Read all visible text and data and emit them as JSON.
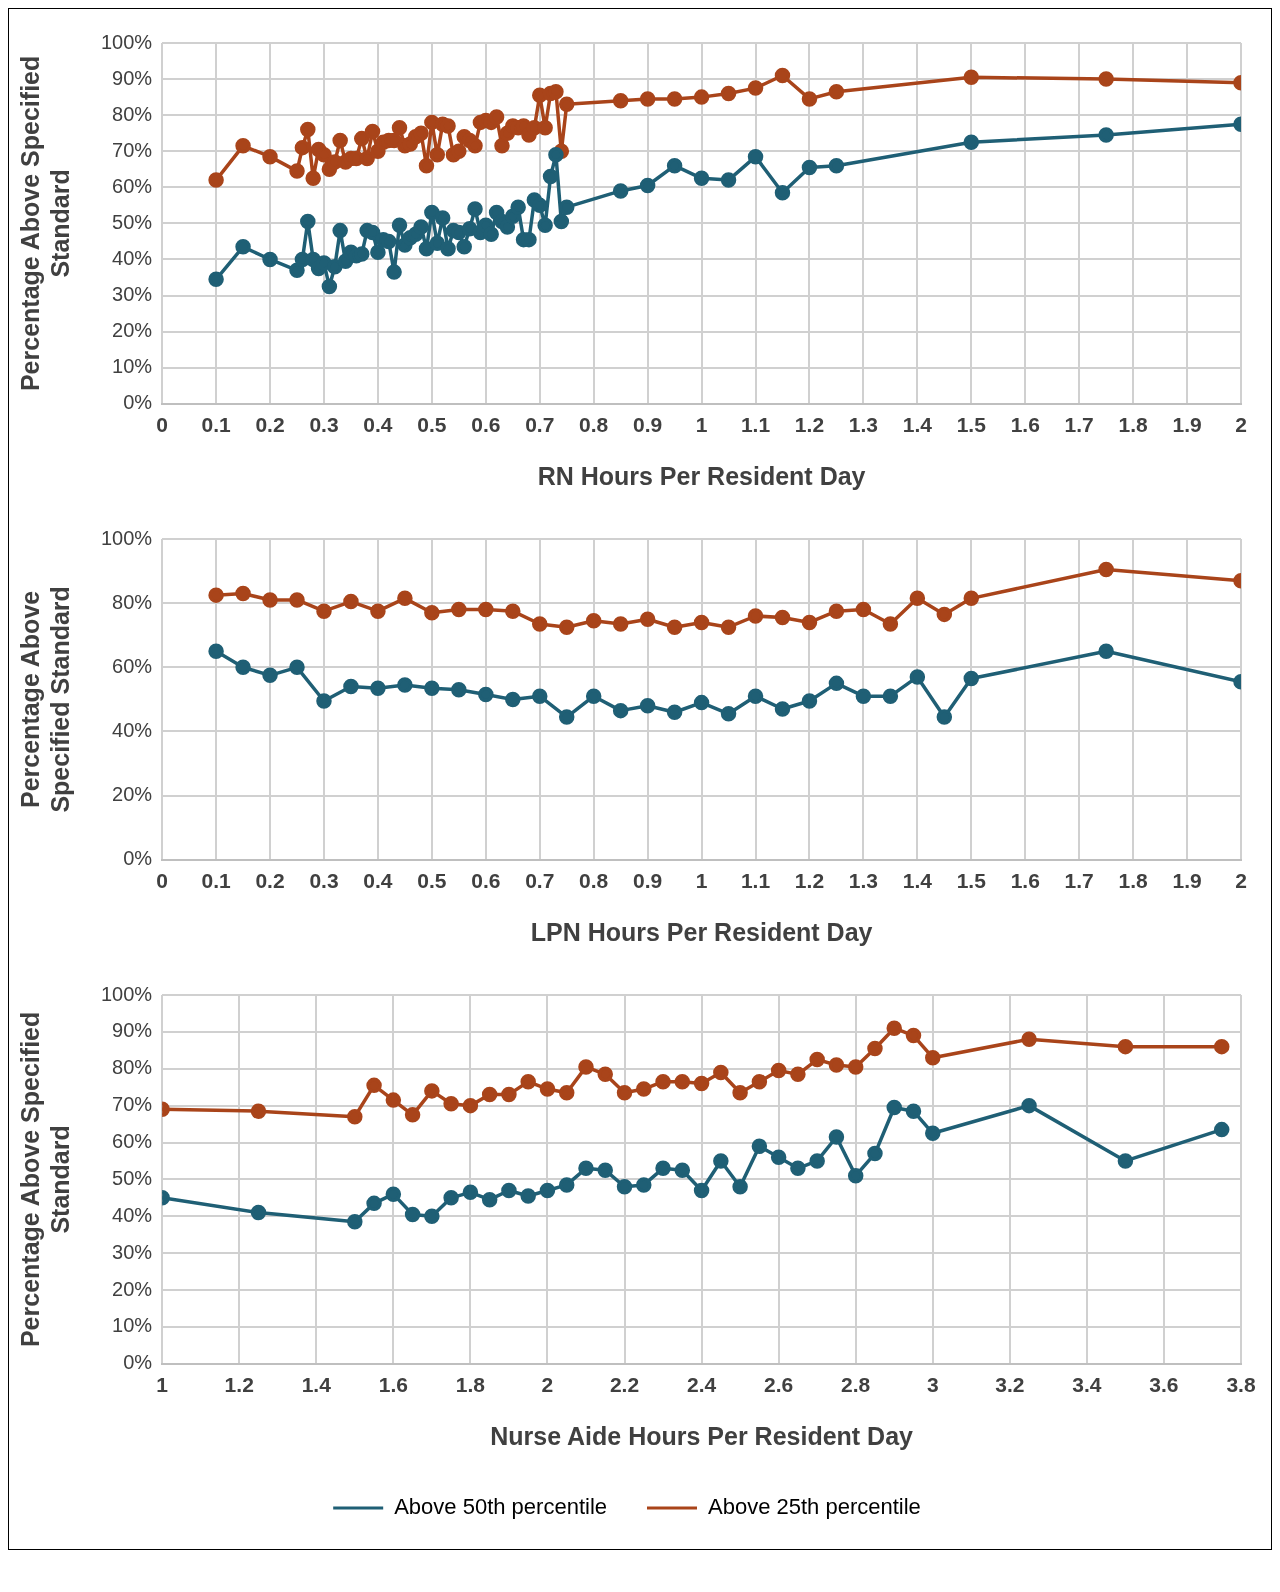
{
  "chart_data": [
    {
      "type": "line",
      "ylabel": "Percentage Above Specified Standard",
      "xlabel": "RN Hours Per Resident Day",
      "xlim": [
        0,
        2
      ],
      "xticks": [
        0,
        0.1,
        0.2,
        0.3,
        0.4,
        0.5,
        0.6,
        0.7,
        0.8,
        0.9,
        1,
        1.1,
        1.2,
        1.3,
        1.4,
        1.5,
        1.6,
        1.7,
        1.8,
        1.9,
        2
      ],
      "ylim": [
        0,
        100
      ],
      "yticks": [
        {
          "value": 0,
          "label": "0%"
        },
        {
          "value": 10,
          "label": "10%"
        },
        {
          "value": 20,
          "label": "20%"
        },
        {
          "value": 30,
          "label": "30%"
        },
        {
          "value": 40,
          "label": "40%"
        },
        {
          "value": 50,
          "label": "50%"
        },
        {
          "value": 60,
          "label": "60%"
        },
        {
          "value": 70,
          "label": "70%"
        },
        {
          "value": 80,
          "label": "80%"
        },
        {
          "value": 90,
          "label": "90%"
        },
        {
          "value": 100,
          "label": "100%"
        }
      ],
      "grid": true,
      "legend": false,
      "marker": "circle",
      "line_style": "solid",
      "series": [
        {
          "color": "#1f5f75",
          "x": [
            0.1,
            0.15,
            0.2,
            0.25,
            0.26,
            0.27,
            0.28,
            0.29,
            0.3,
            0.31,
            0.32,
            0.33,
            0.34,
            0.35,
            0.36,
            0.37,
            0.38,
            0.39,
            0.4,
            0.41,
            0.42,
            0.43,
            0.44,
            0.45,
            0.46,
            0.47,
            0.48,
            0.49,
            0.5,
            0.51,
            0.52,
            0.53,
            0.54,
            0.55,
            0.56,
            0.57,
            0.58,
            0.59,
            0.6,
            0.61,
            0.62,
            0.63,
            0.64,
            0.65,
            0.66,
            0.67,
            0.68,
            0.69,
            0.7,
            0.71,
            0.72,
            0.73,
            0.74,
            0.75,
            0.85,
            0.9,
            0.95,
            1,
            1.05,
            1.1,
            1.15,
            1.2,
            1.25,
            1.5,
            1.75,
            2
          ],
          "values": [
            34.5,
            43.5,
            40,
            37,
            40,
            50.5,
            40,
            37.5,
            39,
            32.5,
            38,
            48,
            39.5,
            42,
            41,
            41.5,
            48,
            47.5,
            42,
            45.5,
            45,
            36.5,
            49.5,
            44,
            46,
            47,
            49,
            43,
            53,
            44.5,
            51.5,
            43,
            48,
            47.5,
            43.5,
            48.5,
            54,
            47.5,
            49.5,
            47,
            53,
            50.5,
            49,
            52,
            54.5,
            45.5,
            45.5,
            56.5,
            55,
            49.5,
            63,
            69,
            50.5,
            54.5,
            59,
            60.5,
            66,
            62.5,
            62,
            68.5,
            58.5,
            65.5,
            66,
            72.5,
            74.5,
            77.5
          ]
        },
        {
          "color": "#a9441a",
          "x": [
            0.1,
            0.15,
            0.2,
            0.25,
            0.26,
            0.27,
            0.28,
            0.29,
            0.3,
            0.31,
            0.32,
            0.33,
            0.34,
            0.35,
            0.36,
            0.37,
            0.38,
            0.39,
            0.4,
            0.41,
            0.42,
            0.43,
            0.44,
            0.45,
            0.46,
            0.47,
            0.48,
            0.49,
            0.5,
            0.51,
            0.52,
            0.53,
            0.54,
            0.55,
            0.56,
            0.57,
            0.58,
            0.59,
            0.6,
            0.61,
            0.62,
            0.63,
            0.64,
            0.65,
            0.66,
            0.67,
            0.68,
            0.69,
            0.7,
            0.71,
            0.72,
            0.73,
            0.74,
            0.75,
            0.85,
            0.9,
            0.95,
            1,
            1.05,
            1.1,
            1.15,
            1.2,
            1.25,
            1.5,
            1.75,
            2
          ],
          "values": [
            62,
            71.5,
            68.5,
            64.5,
            71,
            76,
            62.5,
            70.5,
            69,
            65,
            67,
            73,
            67,
            68,
            68,
            73.5,
            68,
            75.5,
            70,
            72.5,
            73,
            73,
            76.5,
            71.5,
            72,
            74,
            75,
            66,
            78,
            69,
            77.5,
            77,
            69,
            70,
            74,
            73,
            71.5,
            78,
            78.5,
            78,
            79.5,
            71.5,
            75,
            77,
            76.5,
            77,
            74.5,
            76.5,
            85.5,
            76.5,
            86,
            86.5,
            70,
            83,
            84,
            84.5,
            84.5,
            85,
            86,
            87.5,
            91,
            84.5,
            86.5,
            90.5,
            90,
            89
          ]
        }
      ]
    },
    {
      "type": "line",
      "ylabel": "Percentage Above Specified Standard",
      "xlabel": "LPN Hours Per Resident Day",
      "xlim": [
        0,
        2
      ],
      "xticks": [
        0,
        0.1,
        0.2,
        0.3,
        0.4,
        0.5,
        0.6,
        0.7,
        0.8,
        0.9,
        1,
        1.1,
        1.2,
        1.3,
        1.4,
        1.5,
        1.6,
        1.7,
        1.8,
        1.9,
        2
      ],
      "ylim": [
        0,
        100
      ],
      "yticks": [
        {
          "value": 0,
          "label": "0%"
        },
        {
          "value": 20,
          "label": "20%"
        },
        {
          "value": 40,
          "label": "40%"
        },
        {
          "value": 60,
          "label": "60%"
        },
        {
          "value": 80,
          "label": "80%"
        },
        {
          "value": 100,
          "label": "100%"
        }
      ],
      "grid": true,
      "legend": false,
      "marker": "circle",
      "line_style": "solid",
      "series": [
        {
          "color": "#1f5f75",
          "x": [
            0.1,
            0.15,
            0.2,
            0.25,
            0.3,
            0.35,
            0.4,
            0.45,
            0.5,
            0.55,
            0.6,
            0.65,
            0.7,
            0.75,
            0.8,
            0.85,
            0.9,
            0.95,
            1,
            1.05,
            1.1,
            1.15,
            1.2,
            1.25,
            1.3,
            1.35,
            1.4,
            1.45,
            1.5,
            1.75,
            2
          ],
          "values": [
            65,
            60,
            57.5,
            60,
            49.5,
            54,
            53.5,
            54.5,
            53.5,
            53,
            51.5,
            50,
            51,
            44.5,
            51,
            46.5,
            48,
            46,
            49,
            45.5,
            51,
            47,
            49.5,
            55,
            51,
            51,
            57,
            44.5,
            56.5,
            65,
            55.5
          ]
        },
        {
          "color": "#a9441a",
          "x": [
            0.1,
            0.15,
            0.2,
            0.25,
            0.3,
            0.35,
            0.4,
            0.45,
            0.5,
            0.55,
            0.6,
            0.65,
            0.7,
            0.75,
            0.8,
            0.85,
            0.9,
            0.95,
            1,
            1.05,
            1.1,
            1.15,
            1.2,
            1.25,
            1.3,
            1.35,
            1.4,
            1.45,
            1.5,
            1.75,
            2
          ],
          "values": [
            82.5,
            83,
            81,
            81,
            77.5,
            80.5,
            77.5,
            81.5,
            77,
            78,
            78,
            77.5,
            73.5,
            72.5,
            74.5,
            73.5,
            75,
            72.5,
            74,
            72.5,
            76,
            75.5,
            74,
            77.5,
            78,
            73.5,
            81.5,
            76.5,
            81.5,
            90.5,
            87
          ]
        }
      ]
    },
    {
      "type": "line",
      "ylabel": "Percentage Above Specified Standard",
      "xlabel": "Nurse Aide Hours Per Resident Day",
      "xlim": [
        1,
        3.8
      ],
      "xticks": [
        1,
        1.2,
        1.4,
        1.6,
        1.8,
        2,
        2.2,
        2.4,
        2.6,
        2.8,
        3,
        3.2,
        3.4,
        3.6,
        3.8
      ],
      "ylim": [
        0,
        100
      ],
      "yticks": [
        {
          "value": 0,
          "label": "0%"
        },
        {
          "value": 10,
          "label": "10%"
        },
        {
          "value": 20,
          "label": "20%"
        },
        {
          "value": 30,
          "label": "30%"
        },
        {
          "value": 40,
          "label": "40%"
        },
        {
          "value": 50,
          "label": "50%"
        },
        {
          "value": 60,
          "label": "60%"
        },
        {
          "value": 70,
          "label": "70%"
        },
        {
          "value": 80,
          "label": "80%"
        },
        {
          "value": 90,
          "label": "90%"
        },
        {
          "value": 100,
          "label": "100%"
        }
      ],
      "grid": true,
      "legend": "bottom",
      "marker": "circle",
      "line_style": "solid",
      "series": [
        {
          "name": "Above 50th percentile",
          "color": "#1f5f75",
          "x": [
            1,
            1.25,
            1.5,
            1.55,
            1.6,
            1.65,
            1.7,
            1.75,
            1.8,
            1.85,
            1.9,
            1.95,
            2,
            2.05,
            2.1,
            2.15,
            2.2,
            2.25,
            2.3,
            2.35,
            2.4,
            2.45,
            2.5,
            2.55,
            2.6,
            2.65,
            2.7,
            2.75,
            2.8,
            2.85,
            2.9,
            2.95,
            3,
            3.25,
            3.5,
            3.75
          ],
          "values": [
            45,
            41,
            38.5,
            43.5,
            46,
            40.5,
            40,
            45,
            46.5,
            44.5,
            47,
            45.5,
            47,
            48.5,
            53,
            52.5,
            48,
            48.5,
            53,
            52.5,
            47,
            55,
            48,
            59,
            56,
            53,
            55,
            61.5,
            51,
            57,
            69.5,
            68.5,
            62.5,
            70,
            55,
            63.5
          ]
        },
        {
          "name": "Above 25th percentile",
          "color": "#a9441a",
          "x": [
            1,
            1.25,
            1.5,
            1.55,
            1.6,
            1.65,
            1.7,
            1.75,
            1.8,
            1.85,
            1.9,
            1.95,
            2,
            2.05,
            2.1,
            2.15,
            2.2,
            2.25,
            2.3,
            2.35,
            2.4,
            2.45,
            2.5,
            2.55,
            2.6,
            2.65,
            2.7,
            2.75,
            2.8,
            2.85,
            2.9,
            2.95,
            3,
            3.25,
            3.5,
            3.75
          ],
          "values": [
            69,
            68.5,
            67,
            75.5,
            71.5,
            67.5,
            74,
            70.5,
            70,
            73,
            73,
            76.5,
            74.5,
            73.5,
            80.5,
            78.5,
            73.5,
            74.5,
            76.5,
            76.5,
            76,
            79,
            73.5,
            76.5,
            79.5,
            78.5,
            82.5,
            81,
            80.5,
            85.5,
            91,
            89,
            83,
            88,
            86,
            86
          ]
        }
      ]
    }
  ]
}
